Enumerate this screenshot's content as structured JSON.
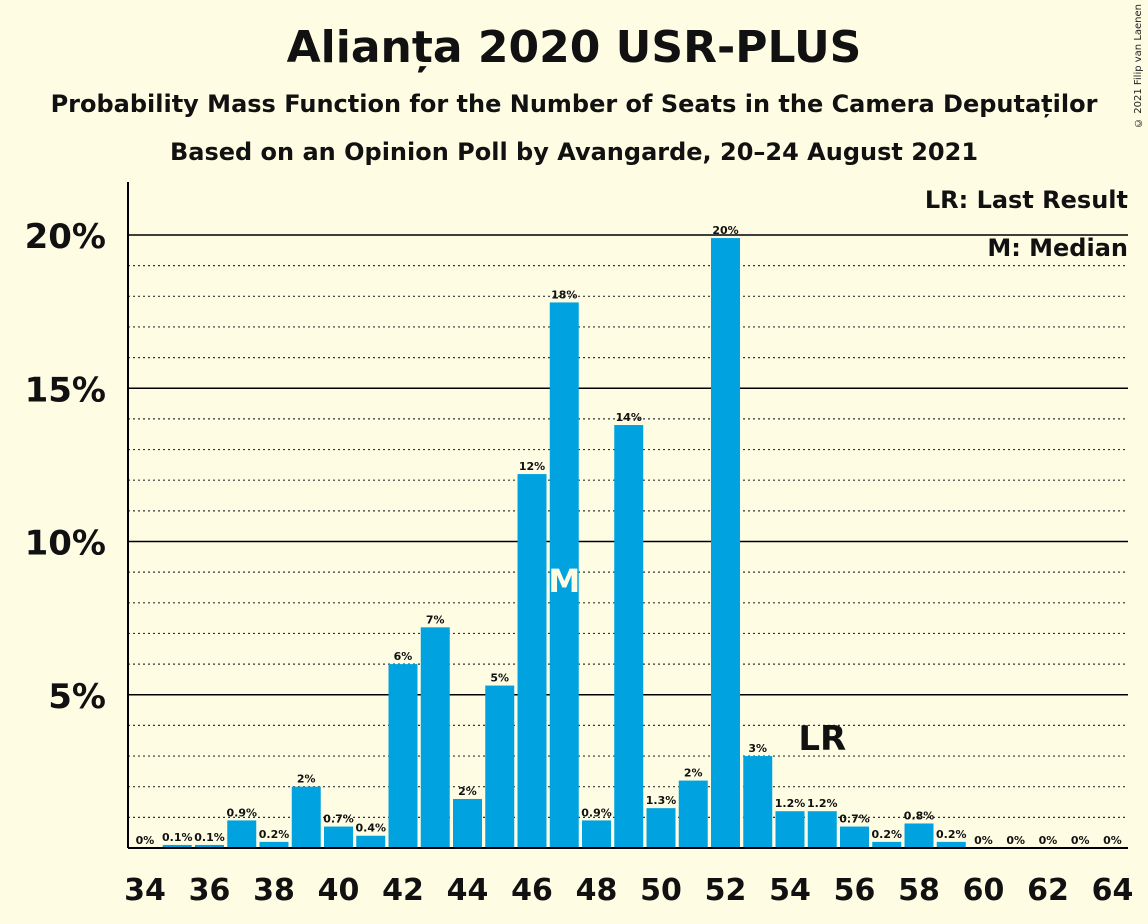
{
  "title": "Alianța 2020 USR-PLUS",
  "subtitle1": "Probability Mass Function for the Number of Seats in the Camera Deputaților",
  "subtitle2": "Based on an Opinion Poll by Avangarde, 20–24 August 2021",
  "copyright": "© 2021 Filip van Laenen",
  "legend": {
    "lr": "LR: Last Result",
    "m": "M: Median"
  },
  "markers": {
    "median_label": "M",
    "median_seat": 47,
    "last_result_label": "LR",
    "last_result_seat": 55
  },
  "colors": {
    "bar": "#00A3E0",
    "background": "#FFFCE4",
    "median_text": "#FFFCE4"
  },
  "chart_data": {
    "type": "bar",
    "x": [
      34,
      35,
      36,
      37,
      38,
      39,
      40,
      41,
      42,
      43,
      44,
      45,
      46,
      47,
      48,
      49,
      50,
      51,
      52,
      53,
      54,
      55,
      56,
      57,
      58,
      59,
      60,
      61,
      62,
      63,
      64
    ],
    "values": [
      0,
      0.1,
      0.1,
      0.9,
      0.2,
      2,
      0.7,
      0.4,
      6,
      7.2,
      1.6,
      5.3,
      12.2,
      17.8,
      0.9,
      13.8,
      1.3,
      2.2,
      19.9,
      3,
      1.2,
      1.2,
      0.7,
      0.2,
      0.8,
      0.2,
      0,
      0,
      0,
      0,
      0
    ],
    "labels": [
      "0%",
      "0.1%",
      "0.1%",
      "0.9%",
      "0.2%",
      "2%",
      "0.7%",
      "0.4%",
      "6%",
      "7%",
      "2%",
      "5%",
      "12%",
      "18%",
      "0.9%",
      "14%",
      "1.3%",
      "2%",
      "20%",
      "3%",
      "1.2%",
      "1.2%",
      "0.7%",
      "0.2%",
      "0.8%",
      "0.2%",
      "0%",
      "0%",
      "0%",
      "0%",
      "0%"
    ],
    "xtick_labels": [
      "34",
      "36",
      "38",
      "40",
      "42",
      "44",
      "46",
      "48",
      "50",
      "52",
      "54",
      "56",
      "58",
      "60",
      "62",
      "64"
    ],
    "yticks": [
      5,
      10,
      15,
      20
    ],
    "ytick_labels": [
      "5%",
      "10%",
      "15%",
      "20%"
    ],
    "ylim": [
      0,
      21.7
    ],
    "grid": true
  }
}
